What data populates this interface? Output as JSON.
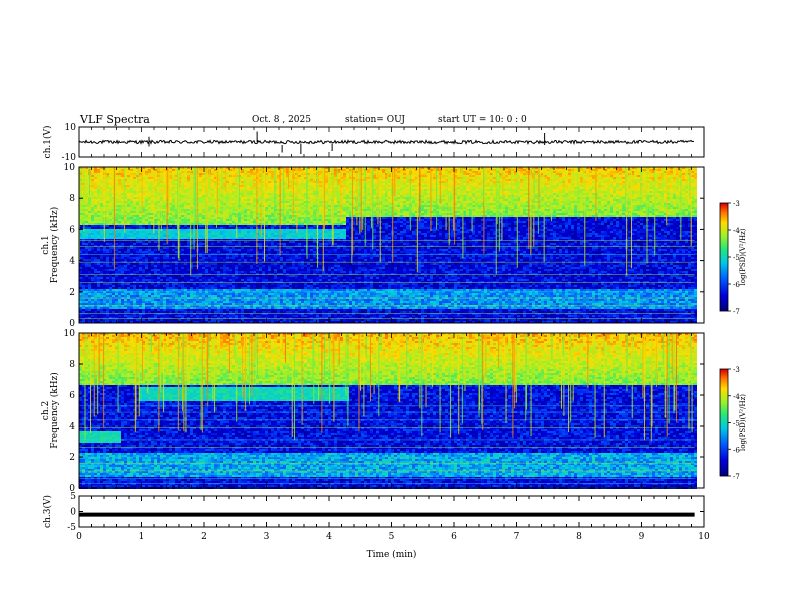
{
  "header": {
    "title": "VLF Spectra",
    "date": "Oct. 8  , 2025",
    "station": "station= OUJ",
    "start": "start  UT  =   10: 0   : 0"
  },
  "chart_data": [
    {
      "type": "line",
      "name": "ch1-waveform",
      "ylabel": "ch.1(V)",
      "ylim": [
        -10,
        10
      ],
      "yticks": [
        "10",
        "-10"
      ],
      "xlim": [
        0,
        10
      ],
      "baseline": 0,
      "note": "noise trace near 0 V with occasional spikes"
    },
    {
      "type": "heatmap",
      "name": "ch1-spectrogram",
      "ylabel": "ch.1\nFrequency  (kHz)",
      "ylim": [
        0,
        10
      ],
      "yticks": [
        "0",
        "2",
        "4",
        "6",
        "8",
        "10"
      ],
      "xlim": [
        0,
        10
      ],
      "colorbar": {
        "label": "log(PSD)(V²/Hz)",
        "ticks": [
          "-3",
          "-4",
          "-5",
          "-6",
          "-7"
        ],
        "range": [
          -7,
          -3
        ]
      },
      "features": {
        "band_top_kHz": 5.9,
        "band_end_min": 4.25,
        "upper_edge_after_kHz": 6.8
      }
    },
    {
      "type": "heatmap",
      "name": "ch2-spectrogram",
      "ylabel": "ch.2\nFrequency  (kHz)",
      "ylim": [
        0,
        10
      ],
      "yticks": [
        "0",
        "2",
        "4",
        "6",
        "8",
        "10"
      ],
      "xlim": [
        0,
        10
      ],
      "colorbar": {
        "label": "log(PSD)(V²/Hz)",
        "ticks": [
          "-3",
          "-4",
          "-5",
          "-6",
          "-7"
        ],
        "range": [
          -7,
          -3
        ]
      },
      "features": {
        "band_kHz": 6.1,
        "band_start_min": 0.95,
        "band_end_min": 4.3,
        "low_band_kHz": 3.4,
        "low_band_end_min": 0.65
      }
    },
    {
      "type": "line",
      "name": "ch3-waveform",
      "ylabel": "ch.3(V)",
      "ylim": [
        -5,
        5
      ],
      "yticks": [
        "5",
        "0",
        "-5"
      ],
      "xlim": [
        0,
        10
      ],
      "baseline": -1.0,
      "note": "flat thick trace"
    }
  ],
  "xaxis": {
    "label": "Time  (min)",
    "ticks": [
      "0",
      "1",
      "2",
      "3",
      "4",
      "5",
      "6",
      "7",
      "8",
      "9",
      "10"
    ],
    "data_end_min": 9.85
  },
  "colors": {
    "spectro_low": "#00008b",
    "spectro_high": "#ff0000",
    "trace": "#000000"
  }
}
